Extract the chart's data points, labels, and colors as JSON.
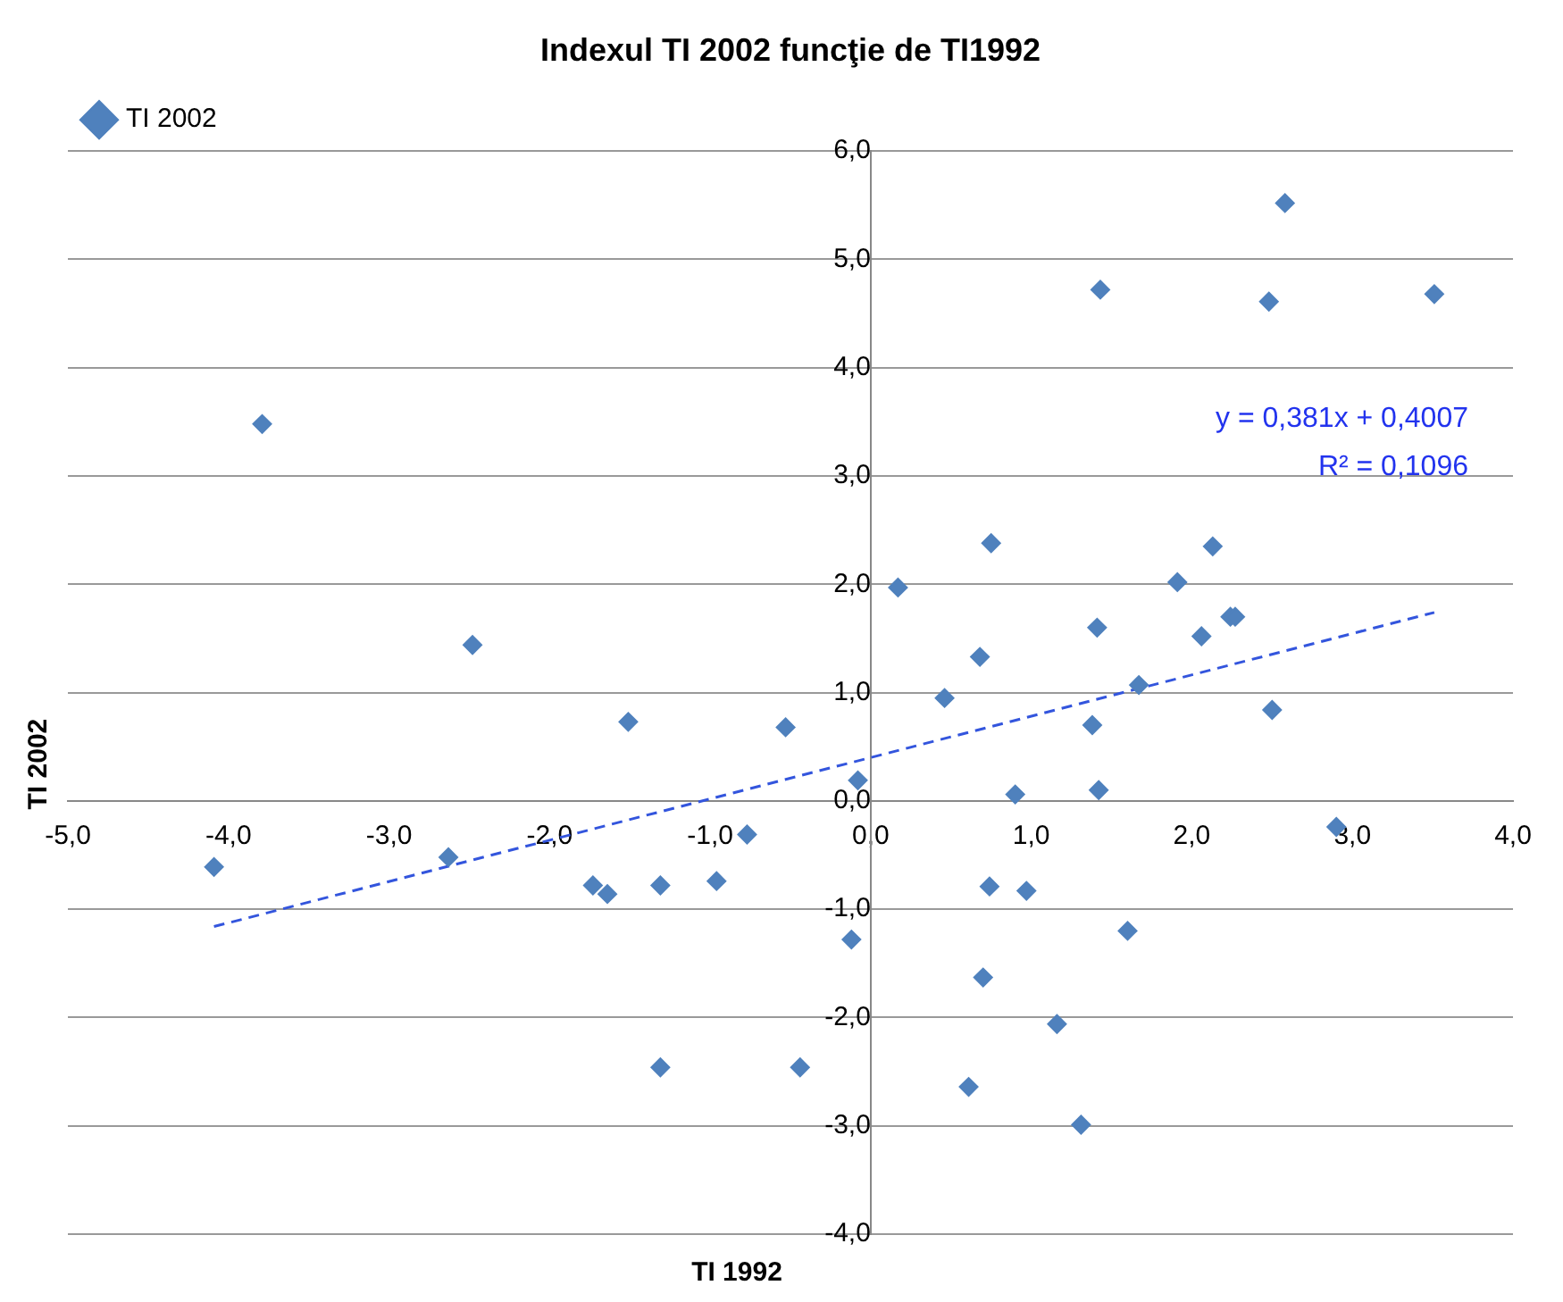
{
  "chart_data": {
    "type": "scatter",
    "title": "Indexul TI 2002 funcţie de TI1992",
    "xlabel": "TI 1992",
    "ylabel": "TI 2002",
    "series": [
      {
        "name": "TI 2002",
        "type": "scatter",
        "color": "#4f81bd",
        "marker": "diamond",
        "x": [
          -3.79,
          -4.09,
          -2.48,
          -2.63,
          -1.73,
          -1.64,
          -1.51,
          -1.31,
          -1.31,
          -0.96,
          -0.77,
          -0.53,
          -0.44,
          -0.08,
          -0.12,
          0.17,
          0.46,
          0.68,
          0.75,
          0.74,
          0.7,
          0.61,
          0.9,
          0.97,
          1.16,
          1.31,
          1.43,
          1.41,
          1.38,
          1.42,
          1.6,
          1.67,
          1.91,
          2.06,
          2.13,
          2.24,
          2.27,
          2.48,
          2.5,
          2.58,
          2.9,
          3.51
        ],
        "values": [
          3.48,
          -0.61,
          1.44,
          -0.52,
          -0.78,
          -0.86,
          0.73,
          -0.78,
          -2.46,
          -0.74,
          -0.31,
          0.68,
          -2.46,
          0.19,
          -1.28,
          1.97,
          0.95,
          1.33,
          2.38,
          -0.79,
          -1.63,
          -2.64,
          0.06,
          -0.83,
          -2.06,
          -2.99,
          4.72,
          1.6,
          0.7,
          0.1,
          -1.2,
          1.07,
          2.02,
          1.52,
          2.35,
          1.7,
          1.7,
          4.61,
          0.84,
          5.52,
          -0.24,
          4.68
        ]
      },
      {
        "type": "line",
        "color": "#3355dd",
        "line_style": "dashed",
        "marker": "none",
        "x": [
          -4.09,
          3.51
        ],
        "values": [
          -1.16,
          1.74
        ]
      }
    ],
    "xlim": [
      -5,
      4
    ],
    "xticks": [
      {
        "value": -5,
        "label": "-5,0"
      },
      {
        "value": -4,
        "label": "-4,0"
      },
      {
        "value": -3,
        "label": "-3,0"
      },
      {
        "value": -2,
        "label": "-2,0"
      },
      {
        "value": -1,
        "label": "-1,0"
      },
      {
        "value": 0,
        "label": "0,0"
      },
      {
        "value": 1,
        "label": "1,0"
      },
      {
        "value": 2,
        "label": "2,0"
      },
      {
        "value": 3,
        "label": "3,0"
      },
      {
        "value": 4,
        "label": "4,0"
      }
    ],
    "ylim": [
      -4,
      6
    ],
    "yticks": [
      {
        "value": -4,
        "label": "-4,0"
      },
      {
        "value": -3,
        "label": "-3,0"
      },
      {
        "value": -2,
        "label": "-2,0"
      },
      {
        "value": -1,
        "label": "-1,0"
      },
      {
        "value": 0,
        "label": "0,0"
      },
      {
        "value": 1,
        "label": "1,0"
      },
      {
        "value": 2,
        "label": "2,0"
      },
      {
        "value": 3,
        "label": "3,0"
      },
      {
        "value": 4,
        "label": "4,0"
      },
      {
        "value": 5,
        "label": "5,0"
      },
      {
        "value": 6,
        "label": "6,0"
      }
    ],
    "grid": "y",
    "legend": "top left",
    "annotations": [
      "y = 0,381x + 0,4007",
      "R² = 0,1096"
    ]
  }
}
